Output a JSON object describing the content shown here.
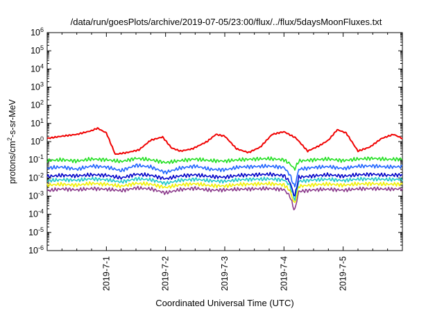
{
  "chart_data": {
    "type": "line",
    "title": "/data/run/goesPlots/archive/2019-07-05/23:00/flux/../flux/5daysMoonFluxes.txt",
    "xlabel": "Coordinated Universal Time (UTC)",
    "ylabel": {
      "pre": "protons/cm",
      "sup": "2",
      "post": "-s-sr-MeV"
    },
    "x_unit": "days since 2019-06-30 00:00 UTC",
    "xlim": [
      0,
      6
    ],
    "x_ticks": [
      {
        "x": 1,
        "label": "2019-7-1"
      },
      {
        "x": 2,
        "label": "2019-7-2"
      },
      {
        "x": 3,
        "label": "2019-7-3"
      },
      {
        "x": 4,
        "label": "2019-7-4"
      },
      {
        "x": 5,
        "label": "2019-7-5"
      }
    ],
    "y_scale": "log",
    "ylim": [
      1e-06,
      1000000.0
    ],
    "y_ticks": [
      {
        "exp": "-6",
        "value": 1e-06
      },
      {
        "exp": "-5",
        "value": 1e-05
      },
      {
        "exp": "-4",
        "value": 0.0001
      },
      {
        "exp": "-3",
        "value": 0.001
      },
      {
        "exp": "-2",
        "value": 0.01
      },
      {
        "exp": "-1",
        "value": 0.1
      },
      {
        "exp": "0",
        "value": 1
      },
      {
        "exp": "1",
        "value": 10.0
      },
      {
        "exp": "2",
        "value": 100.0
      },
      {
        "exp": "3",
        "value": 1000.0
      },
      {
        "exp": "4",
        "value": 10000.0
      },
      {
        "exp": "5",
        "value": 100000.0
      },
      {
        "exp": "6",
        "value": 1000000.0
      }
    ],
    "grid": false,
    "legend": "none",
    "series": [
      {
        "color": "#8b3a8b",
        "x": [
          0.0,
          0.25,
          0.5,
          0.75,
          1.0,
          1.25,
          1.5,
          1.75,
          2.0,
          2.25,
          2.5,
          2.75,
          3.0,
          3.25,
          3.5,
          3.75,
          4.0,
          4.1,
          4.18,
          4.25,
          4.5,
          4.75,
          5.0,
          5.25,
          5.5,
          5.75,
          6.0
        ],
        "y": [
          0.002,
          0.0025,
          0.0022,
          0.0026,
          0.0024,
          0.002,
          0.0028,
          0.0025,
          0.0015,
          0.0023,
          0.0027,
          0.0021,
          0.0022,
          0.0024,
          0.0025,
          0.0026,
          0.0023,
          0.001,
          0.00015,
          0.0018,
          0.0022,
          0.0024,
          0.0021,
          0.0025,
          0.0026,
          0.0024,
          0.0025
        ]
      },
      {
        "color": "#f0f000",
        "x": [
          0.0,
          0.25,
          0.5,
          0.75,
          1.0,
          1.25,
          1.5,
          1.75,
          2.0,
          2.25,
          2.5,
          2.75,
          3.0,
          3.25,
          3.5,
          3.75,
          4.0,
          4.1,
          4.18,
          4.25,
          4.5,
          4.75,
          5.0,
          5.25,
          5.5,
          5.75,
          6.0
        ],
        "y": [
          0.004,
          0.0045,
          0.004,
          0.005,
          0.0045,
          0.0035,
          0.005,
          0.0045,
          0.003,
          0.0042,
          0.0048,
          0.0038,
          0.0036,
          0.0044,
          0.0046,
          0.0048,
          0.0042,
          0.002,
          0.00035,
          0.0035,
          0.0042,
          0.0046,
          0.004,
          0.0047,
          0.0048,
          0.0045,
          0.0046
        ]
      },
      {
        "color": "#20c8c8",
        "x": [
          0.0,
          0.25,
          0.5,
          0.75,
          1.0,
          1.25,
          1.5,
          1.75,
          2.0,
          2.25,
          2.5,
          2.75,
          3.0,
          3.25,
          3.5,
          3.75,
          4.0,
          4.1,
          4.18,
          4.25,
          4.5,
          4.75,
          5.0,
          5.25,
          5.5,
          5.75,
          6.0
        ],
        "y": [
          0.007,
          0.008,
          0.0075,
          0.009,
          0.008,
          0.006,
          0.009,
          0.008,
          0.005,
          0.0075,
          0.0085,
          0.007,
          0.0065,
          0.008,
          0.0085,
          0.0088,
          0.0078,
          0.004,
          0.0006,
          0.0065,
          0.0078,
          0.0085,
          0.0072,
          0.0086,
          0.0088,
          0.0082,
          0.0084
        ]
      },
      {
        "color": "#0000c8",
        "x": [
          0.0,
          0.25,
          0.5,
          0.75,
          1.0,
          1.25,
          1.5,
          1.75,
          2.0,
          2.25,
          2.5,
          2.75,
          3.0,
          3.25,
          3.5,
          3.75,
          4.0,
          4.1,
          4.18,
          4.25,
          4.5,
          4.75,
          5.0,
          5.25,
          5.5,
          5.75,
          6.0
        ],
        "y": [
          0.012,
          0.014,
          0.013,
          0.015,
          0.014,
          0.01,
          0.016,
          0.014,
          0.009,
          0.013,
          0.015,
          0.012,
          0.011,
          0.014,
          0.015,
          0.016,
          0.0135,
          0.006,
          0.0009,
          0.011,
          0.013,
          0.015,
          0.0125,
          0.015,
          0.016,
          0.014,
          0.015
        ]
      },
      {
        "color": "#1e64ff",
        "x": [
          0.0,
          0.25,
          0.5,
          0.75,
          1.0,
          1.25,
          1.5,
          1.75,
          2.0,
          2.25,
          2.5,
          2.75,
          3.0,
          3.25,
          3.5,
          3.75,
          4.0,
          4.1,
          4.18,
          4.25,
          4.5,
          4.75,
          5.0,
          5.25,
          5.5,
          5.75,
          6.0
        ],
        "y": [
          0.035,
          0.04,
          0.03,
          0.045,
          0.04,
          0.025,
          0.05,
          0.04,
          0.02,
          0.035,
          0.045,
          0.03,
          0.028,
          0.04,
          0.042,
          0.045,
          0.038,
          0.015,
          0.003,
          0.03,
          0.038,
          0.042,
          0.033,
          0.044,
          0.046,
          0.04,
          0.042
        ]
      },
      {
        "color": "#20e020",
        "x": [
          0.0,
          0.25,
          0.5,
          0.75,
          1.0,
          1.25,
          1.5,
          1.75,
          2.0,
          2.25,
          2.5,
          2.75,
          3.0,
          3.25,
          3.5,
          3.75,
          4.0,
          4.1,
          4.18,
          4.25,
          4.5,
          4.75,
          5.0,
          5.25,
          5.5,
          5.75,
          6.0
        ],
        "y": [
          0.09,
          0.1,
          0.085,
          0.11,
          0.1,
          0.08,
          0.12,
          0.1,
          0.07,
          0.09,
          0.11,
          0.09,
          0.085,
          0.1,
          0.11,
          0.115,
          0.1,
          0.06,
          0.03,
          0.085,
          0.1,
          0.11,
          0.09,
          0.11,
          0.12,
          0.105,
          0.11
        ]
      },
      {
        "color": "#f00000",
        "x": [
          0.0,
          0.25,
          0.5,
          0.75,
          0.85,
          1.0,
          1.15,
          1.35,
          1.55,
          1.75,
          1.95,
          2.1,
          2.25,
          2.45,
          2.7,
          2.85,
          3.0,
          3.2,
          3.4,
          3.6,
          3.8,
          4.0,
          4.2,
          4.4,
          4.6,
          4.75,
          4.9,
          5.05,
          5.25,
          5.45,
          5.65,
          5.85,
          6.0
        ],
        "y": [
          1.5,
          2,
          2.5,
          4,
          5.5,
          3,
          0.2,
          0.25,
          0.35,
          1.2,
          1.8,
          0.45,
          0.3,
          0.4,
          1.0,
          2.5,
          2.0,
          0.4,
          0.25,
          0.5,
          2.5,
          3.5,
          1.6,
          0.3,
          0.6,
          1.2,
          4.5,
          3.0,
          0.3,
          0.5,
          1.5,
          2.5,
          1.5
        ]
      }
    ]
  }
}
